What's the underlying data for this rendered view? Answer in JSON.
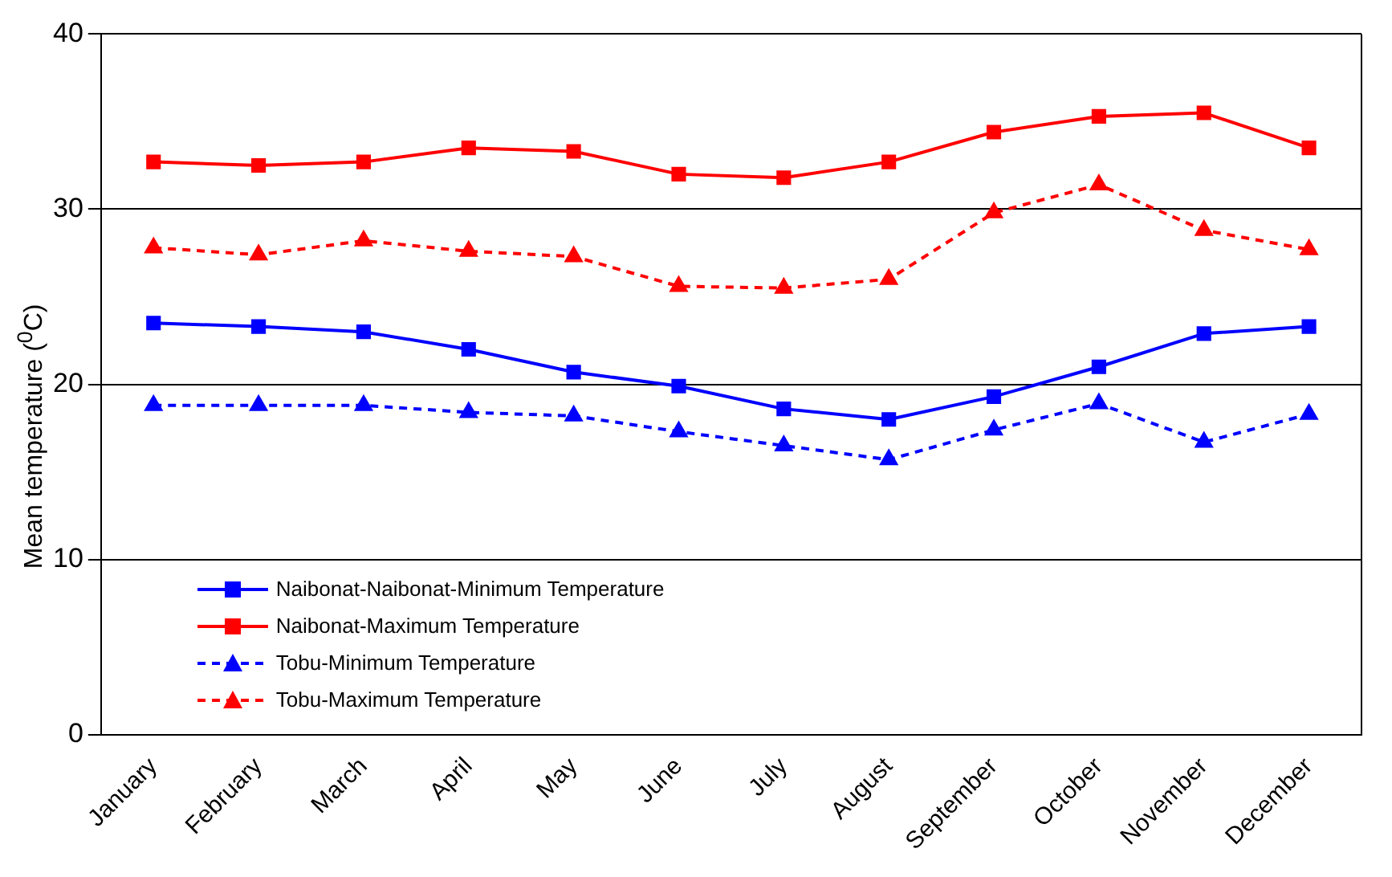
{
  "chart_data": {
    "type": "line",
    "ylabel": "Mean temperature ($^{0}$C)",
    "categories": [
      "January",
      "February",
      "March",
      "April",
      "May",
      "June",
      "July",
      "August",
      "September",
      "October",
      "November",
      "December"
    ],
    "ylim": [
      0,
      40
    ],
    "yticks": [
      0,
      10,
      20,
      30,
      40
    ],
    "grid": "y",
    "legend": "bottom left",
    "series": [
      {
        "name": "Naibonat-Naibonat-Minimum Temperature",
        "color": "#0000ff",
        "marker": "square",
        "line_style": "solid",
        "values": [
          23.5,
          23.3,
          23.0,
          22.0,
          20.7,
          19.9,
          18.6,
          18.0,
          19.3,
          21.0,
          22.9,
          23.3
        ]
      },
      {
        "name": "Naibonat-Maximum Temperature",
        "color": "#ff0000",
        "marker": "square",
        "line_style": "solid",
        "values": [
          32.7,
          32.5,
          32.7,
          33.5,
          33.3,
          32.0,
          31.8,
          32.7,
          34.4,
          35.3,
          35.5,
          33.5
        ]
      },
      {
        "name": "Tobu-Minimum Temperature",
        "color": "#0000ff",
        "marker": "triangle",
        "line_style": "dashed",
        "values": [
          18.8,
          18.8,
          18.8,
          18.4,
          18.2,
          17.3,
          16.5,
          15.7,
          17.4,
          18.9,
          16.7,
          18.3
        ]
      },
      {
        "name": "Tobu-Maximum Temperature",
        "color": "#ff0000",
        "marker": "triangle",
        "line_style": "dashed",
        "values": [
          27.8,
          27.4,
          28.2,
          27.6,
          27.3,
          25.6,
          25.5,
          26.0,
          29.8,
          31.4,
          28.8,
          27.7
        ]
      }
    ]
  }
}
